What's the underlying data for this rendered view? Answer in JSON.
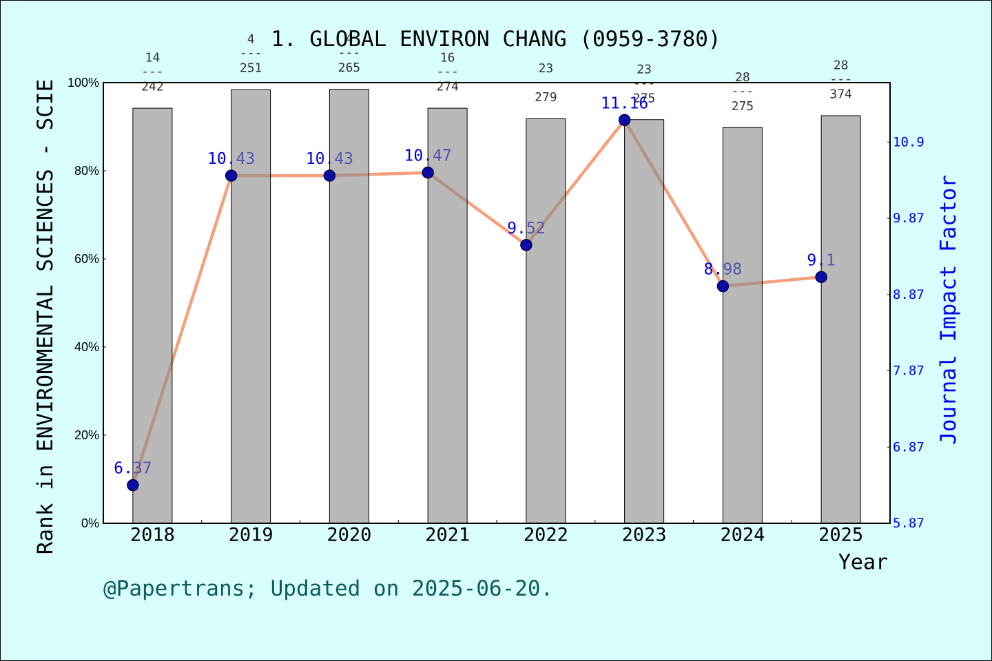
{
  "footer": "@Papertrans; Updated on 2025-06-20.",
  "colors": {
    "background": "#d9fefe",
    "plot_background": "#ffffff",
    "bar": "#b9b9b9",
    "line": "#f4a07c",
    "marker": "#0b0ba8",
    "if_label": "#0000dd",
    "right_axis": "#0000ee",
    "footer": "#0d5c5c"
  },
  "chart_data": {
    "type": "bar",
    "title": "1. GLOBAL ENVIRON CHANG (0959-3780)",
    "xlabel": "Year",
    "ylabel": "Rank in ENVIRONMENTAL SCIENCES - SCIE",
    "y2label": "Journal Impact Factor",
    "categories": [
      "2018",
      "2019",
      "2020",
      "2021",
      "2022",
      "2023",
      "2024",
      "2025"
    ],
    "ylim": [
      0,
      100
    ],
    "yticks": [
      0,
      20,
      40,
      60,
      80,
      100
    ],
    "ytick_labels": [
      "0%",
      "20%",
      "40%",
      "60%",
      "80%",
      "100%"
    ],
    "y2lim": [
      5.87,
      11.65
    ],
    "y2ticks": [
      5.87,
      6.87,
      7.87,
      8.87,
      9.87,
      10.87
    ],
    "y2tick_labels": [
      "5.87",
      "6.87",
      "7.87",
      "8.87",
      "9.87",
      "10.9"
    ],
    "grid": false,
    "series": [
      {
        "type": "bar",
        "axis": "left",
        "values": [
          94.2,
          98.4,
          98.5,
          94.2,
          91.8,
          91.6,
          89.8,
          92.5
        ],
        "ranks": [
          14,
          4,
          4,
          16,
          23,
          23,
          28,
          28
        ],
        "rank_divider": "---",
        "totals": [
          242,
          251,
          265,
          274,
          279,
          275,
          275,
          374
        ]
      },
      {
        "type": "line",
        "axis": "right",
        "values": [
          6.37,
          10.43,
          10.43,
          10.47,
          9.52,
          11.16,
          8.98,
          9.1
        ],
        "labels": [
          "6.37",
          "10.43",
          "10.43",
          "10.47",
          "9.52",
          "11.16",
          "8.98",
          "9.1"
        ]
      }
    ]
  }
}
